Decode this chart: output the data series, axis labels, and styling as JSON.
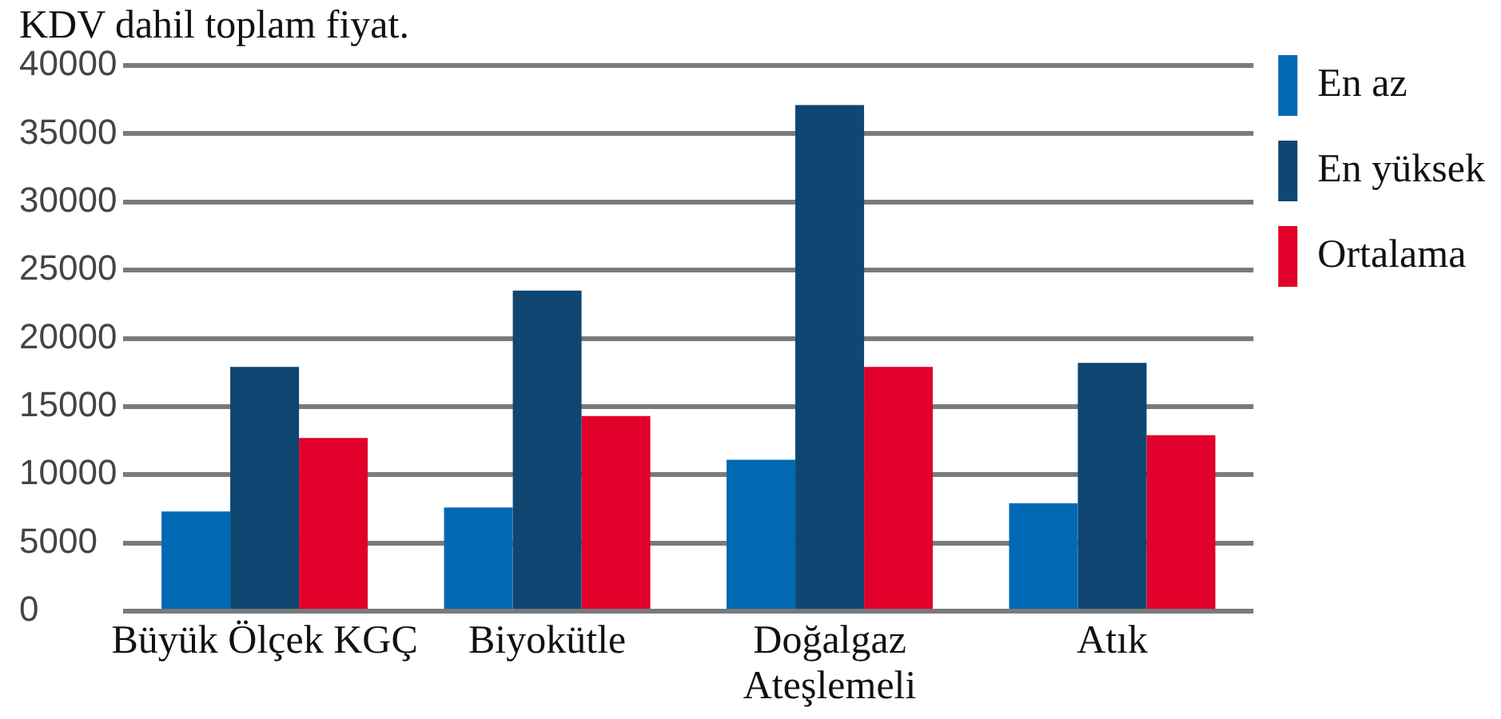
{
  "chart_data": {
    "type": "bar",
    "title": "KDV dahil toplam fiyat.",
    "categories": [
      "Büyük Ölçek KGÇ",
      "Biyokütle",
      "Doğalgaz\nAteşlemeli",
      "Atık"
    ],
    "series": [
      {
        "name": "En az",
        "color": "#0069b4",
        "values": [
          7300,
          7600,
          11100,
          7900
        ]
      },
      {
        "name": "En yüksek",
        "color": "#0f4672",
        "values": [
          17900,
          23500,
          37100,
          18200
        ]
      },
      {
        "name": "Ortalama",
        "color": "#e1002a",
        "values": [
          12700,
          14300,
          17900,
          12900
        ]
      }
    ],
    "ylim": [
      0,
      40000
    ],
    "yticks": [
      0,
      5000,
      10000,
      15000,
      20000,
      25000,
      30000,
      35000,
      40000
    ],
    "grid": "y",
    "legend": "top right"
  }
}
